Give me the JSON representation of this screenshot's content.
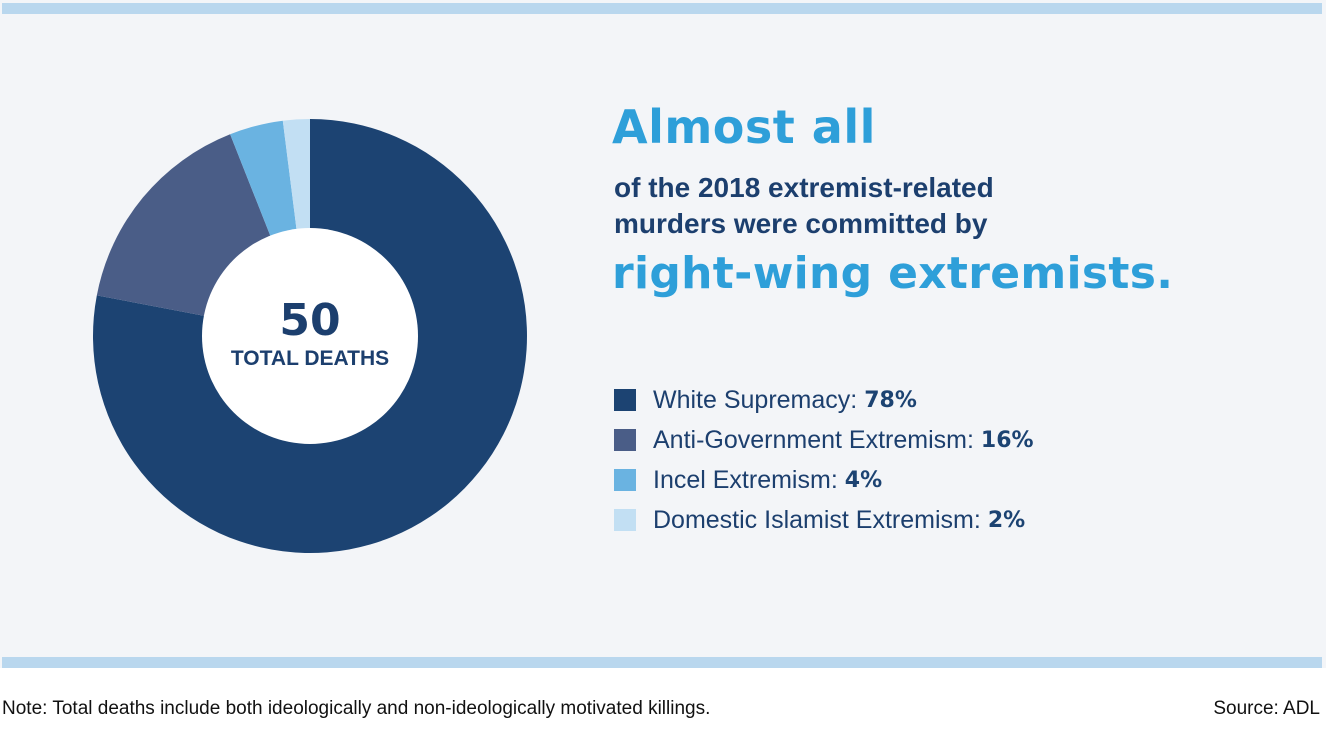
{
  "colors": {
    "panel_bg": "#f3f5f8",
    "bar": "#b9d7ee",
    "headline_accent": "#2e9fd9",
    "headline_dark": "#1c3f6e",
    "donut_hole": "#ffffff"
  },
  "headline": {
    "line1": "Almost all",
    "line2": "of the 2018 extremist-related",
    "line3": "murders were committed by",
    "line4": "right-wing extremists."
  },
  "chart_data": {
    "type": "pie",
    "title": "Almost all of the 2018 extremist-related murders were committed by right-wing extremists.",
    "center_value": "50",
    "center_label": "TOTAL DEATHS",
    "categories": [
      "White Supremacy",
      "Anti-Government Extremism",
      "Incel Extremism",
      "Domestic Islamist Extremism"
    ],
    "values": [
      78,
      16,
      4,
      2
    ],
    "value_labels": [
      "78%",
      "16%",
      "4%",
      "2%"
    ],
    "colors": [
      "#1c4372",
      "#4a5d87",
      "#6ab3e1",
      "#c2dff3"
    ],
    "legend_position": "right"
  },
  "footer": {
    "note": "Note: Total deaths include both ideologically and non-ideologically motivated killings.",
    "source": "Source: ADL"
  }
}
